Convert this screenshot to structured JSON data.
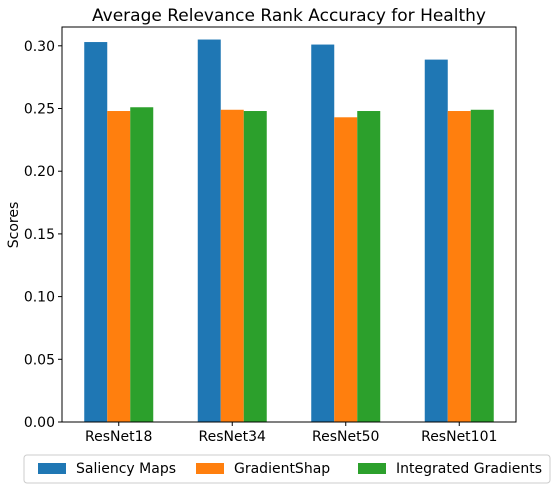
{
  "chart_data": {
    "type": "bar",
    "title": "Average Relevance Rank Accuracy for Healthy",
    "xlabel": "",
    "ylabel": "Scores",
    "categories": [
      "ResNet18",
      "ResNet34",
      "ResNet50",
      "ResNet101"
    ],
    "ylim": [
      0,
      0.315
    ],
    "yticks": [
      "0.00",
      "0.05",
      "0.10",
      "0.15",
      "0.20",
      "0.25",
      "0.30"
    ],
    "grid": false,
    "legend_position": "bottom-center",
    "series": [
      {
        "name": "Saliency Maps",
        "color": "#1f77b4",
        "values": [
          0.303,
          0.305,
          0.301,
          0.289
        ]
      },
      {
        "name": "GradientShap",
        "color": "#ff7f0e",
        "values": [
          0.248,
          0.249,
          0.243,
          0.248
        ]
      },
      {
        "name": "Integrated Gradients",
        "color": "#2ca02c",
        "values": [
          0.251,
          0.248,
          0.248,
          0.249
        ]
      }
    ]
  }
}
